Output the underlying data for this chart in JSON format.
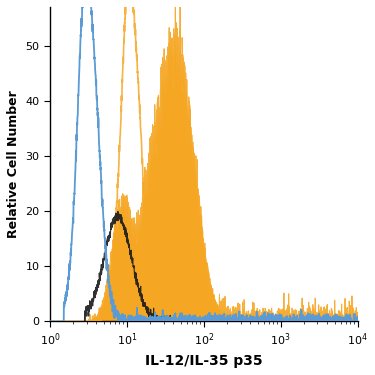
{
  "title": "",
  "xlabel": "IL-12/IL-35 p35",
  "ylabel": "Relative Cell Number",
  "xmin": 1,
  "xmax": 10000,
  "ymin": 0,
  "ymax": 57,
  "yticks": [
    0,
    10,
    20,
    30,
    40,
    50
  ],
  "background_color": "#ffffff",
  "blue_color": "#5b9bd5",
  "orange_color": "#f5a623",
  "dark_color": "#1a1a1a",
  "figsize": [
    3.75,
    3.75
  ],
  "dpi": 100
}
